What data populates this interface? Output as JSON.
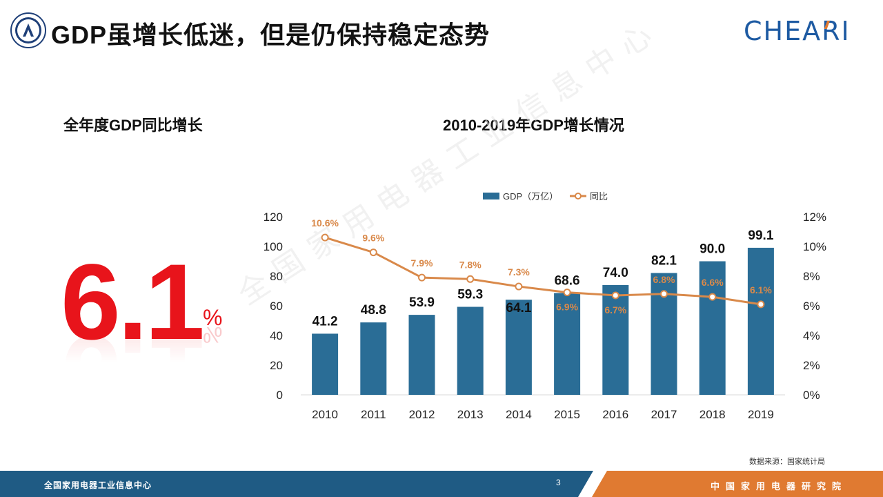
{
  "header": {
    "title": "GDP虽增长低迷，但是仍保持稳定态势",
    "brand": "CHEARI"
  },
  "left_panel": {
    "heading": "全年度GDP同比增长",
    "big_value": "6.1",
    "unit": "%"
  },
  "watermark": "全国家用电器工业信息中心",
  "chart_data": {
    "type": "bar",
    "title": "2010-2019年GDP增长情况",
    "categories": [
      "2010",
      "2011",
      "2012",
      "2013",
      "2014",
      "2015",
      "2016",
      "2017",
      "2018",
      "2019"
    ],
    "series": [
      {
        "name": "GDP（万亿）",
        "type": "bar",
        "axis": "left",
        "values": [
          41.2,
          48.8,
          53.9,
          59.3,
          64.1,
          68.6,
          74.0,
          82.1,
          90.0,
          99.1
        ],
        "labels": [
          "41.2",
          "48.8",
          "53.9",
          "59.3",
          "64.1",
          "68.6",
          "74.0",
          "82.1",
          "90.0",
          "99.1"
        ]
      },
      {
        "name": "同比",
        "type": "line",
        "axis": "right",
        "values": [
          10.6,
          9.6,
          7.9,
          7.8,
          7.3,
          6.9,
          6.7,
          6.8,
          6.6,
          6.1
        ],
        "labels": [
          "10.6%",
          "9.6%",
          "7.9%",
          "7.8%",
          "7.3%",
          "6.9%",
          "6.7%",
          "6.8%",
          "6.6%",
          "6.1%"
        ]
      }
    ],
    "ylim": [
      0,
      120
    ],
    "y_ticks": [
      "0",
      "20",
      "40",
      "60",
      "80",
      "100",
      "120"
    ],
    "y2lim": [
      0,
      12
    ],
    "y2_ticks": [
      "0%",
      "2%",
      "4%",
      "6%",
      "8%",
      "10%",
      "12%"
    ],
    "grid": false,
    "legend": "top-center",
    "colors": {
      "bar": "#2a6d96",
      "line": "#d9894a"
    }
  },
  "source_note": "数据来源：国家统计局",
  "footer": {
    "left_text": "全国家用电器工业信息中心",
    "page_number": "3",
    "right_text": "中国家用电器研究院",
    "colors": {
      "left": "#1f5b84",
      "right": "#e07a31"
    }
  }
}
